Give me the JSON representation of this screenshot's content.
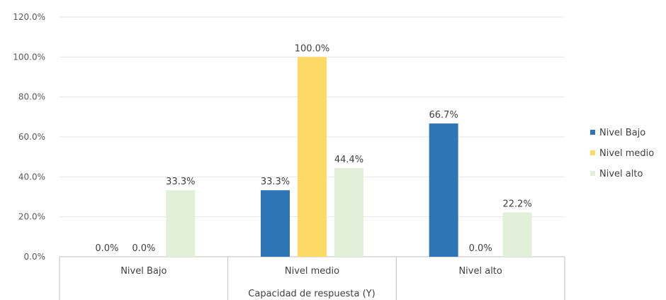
{
  "chart_data": {
    "type": "bar",
    "title": "",
    "xlabel": "Capacidad de respuesta (Y)",
    "ylabel": "",
    "categories": [
      "Nivel Bajo",
      "Nivel medio",
      "Nivel alto"
    ],
    "series": [
      {
        "name": "Nivel Bajo",
        "color": "#2e75b6",
        "values": [
          0.0,
          33.3,
          66.7
        ],
        "labels": [
          "0.0%",
          "33.3%",
          "66.7%"
        ]
      },
      {
        "name": "Nivel medio",
        "color": "#ffd966",
        "values": [
          0.0,
          100.0,
          0.0
        ],
        "labels": [
          "0.0%",
          "100.0%",
          "0.0%"
        ]
      },
      {
        "name": "Nivel alto",
        "color": "#e2efd9",
        "values": [
          33.3,
          44.4,
          22.2
        ],
        "labels": [
          "33.3%",
          "44.4%",
          "22.2%"
        ]
      }
    ],
    "yticks": [
      "0.0%",
      "20.0%",
      "40.0%",
      "60.0%",
      "80.0%",
      "100.0%",
      "120.0%"
    ],
    "ylim": [
      0,
      120
    ],
    "grid": true,
    "legend_position": "right"
  }
}
